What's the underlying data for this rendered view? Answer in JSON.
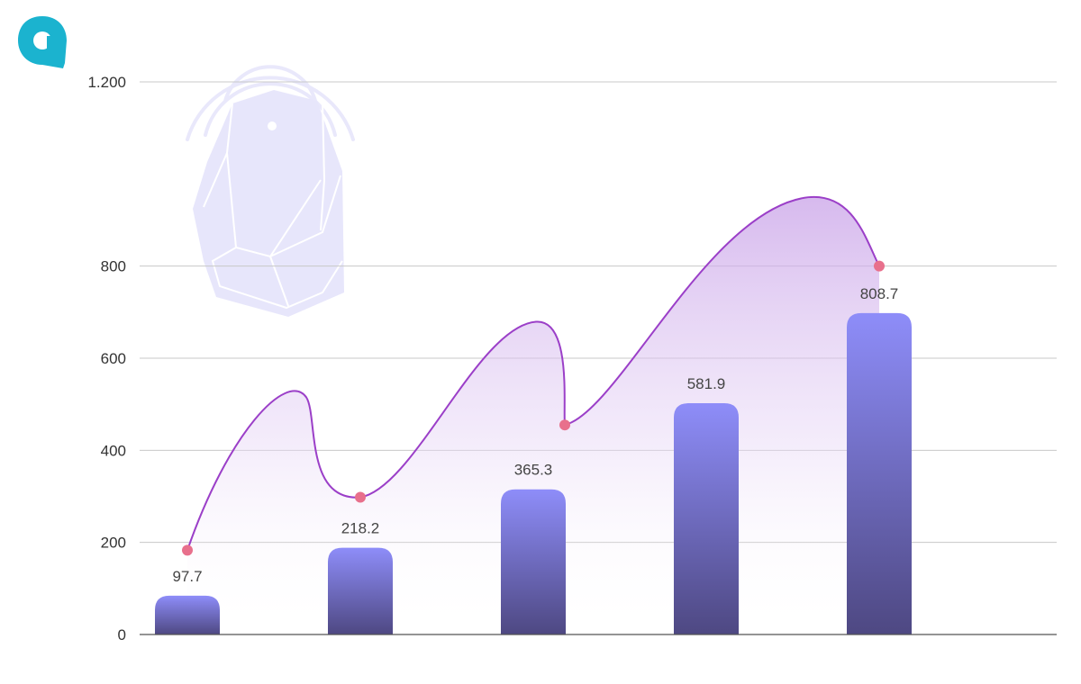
{
  "brand": {
    "logo_icon": "brand-logo-icon",
    "logo_color": "#1bb3cf"
  },
  "decoration": {
    "illustration_icon": "rock-signal-icon",
    "color": "#e7e6fb"
  },
  "chart_data": {
    "type": "bar",
    "title": "",
    "xlabel": "",
    "ylabel": "",
    "ylim": [
      0,
      1200
    ],
    "yticks": [
      0,
      200,
      400,
      600,
      800,
      1200
    ],
    "ytick_labels": [
      "0",
      "200",
      "400",
      "600",
      "800",
      "1.200"
    ],
    "grid": true,
    "legend": "none",
    "categories": [
      "",
      "",
      "",
      "",
      ""
    ],
    "values": [
      97.7,
      218.2,
      365.3,
      581.9,
      808.7
    ],
    "value_labels": [
      "97.7",
      "218.2",
      "365.3",
      "581.9",
      "808.7"
    ],
    "overlay_line": {
      "type": "smooth-area",
      "marker_values": [
        183,
        298,
        455,
        null,
        800
      ],
      "marker_color": "#e8708c",
      "line_color": "#9b3fc8"
    },
    "colors": {
      "bar_top": "#8e8df9",
      "bar_bottom": "#4e4882",
      "axis": "#555555",
      "grid": "#c8c8c8"
    }
  }
}
